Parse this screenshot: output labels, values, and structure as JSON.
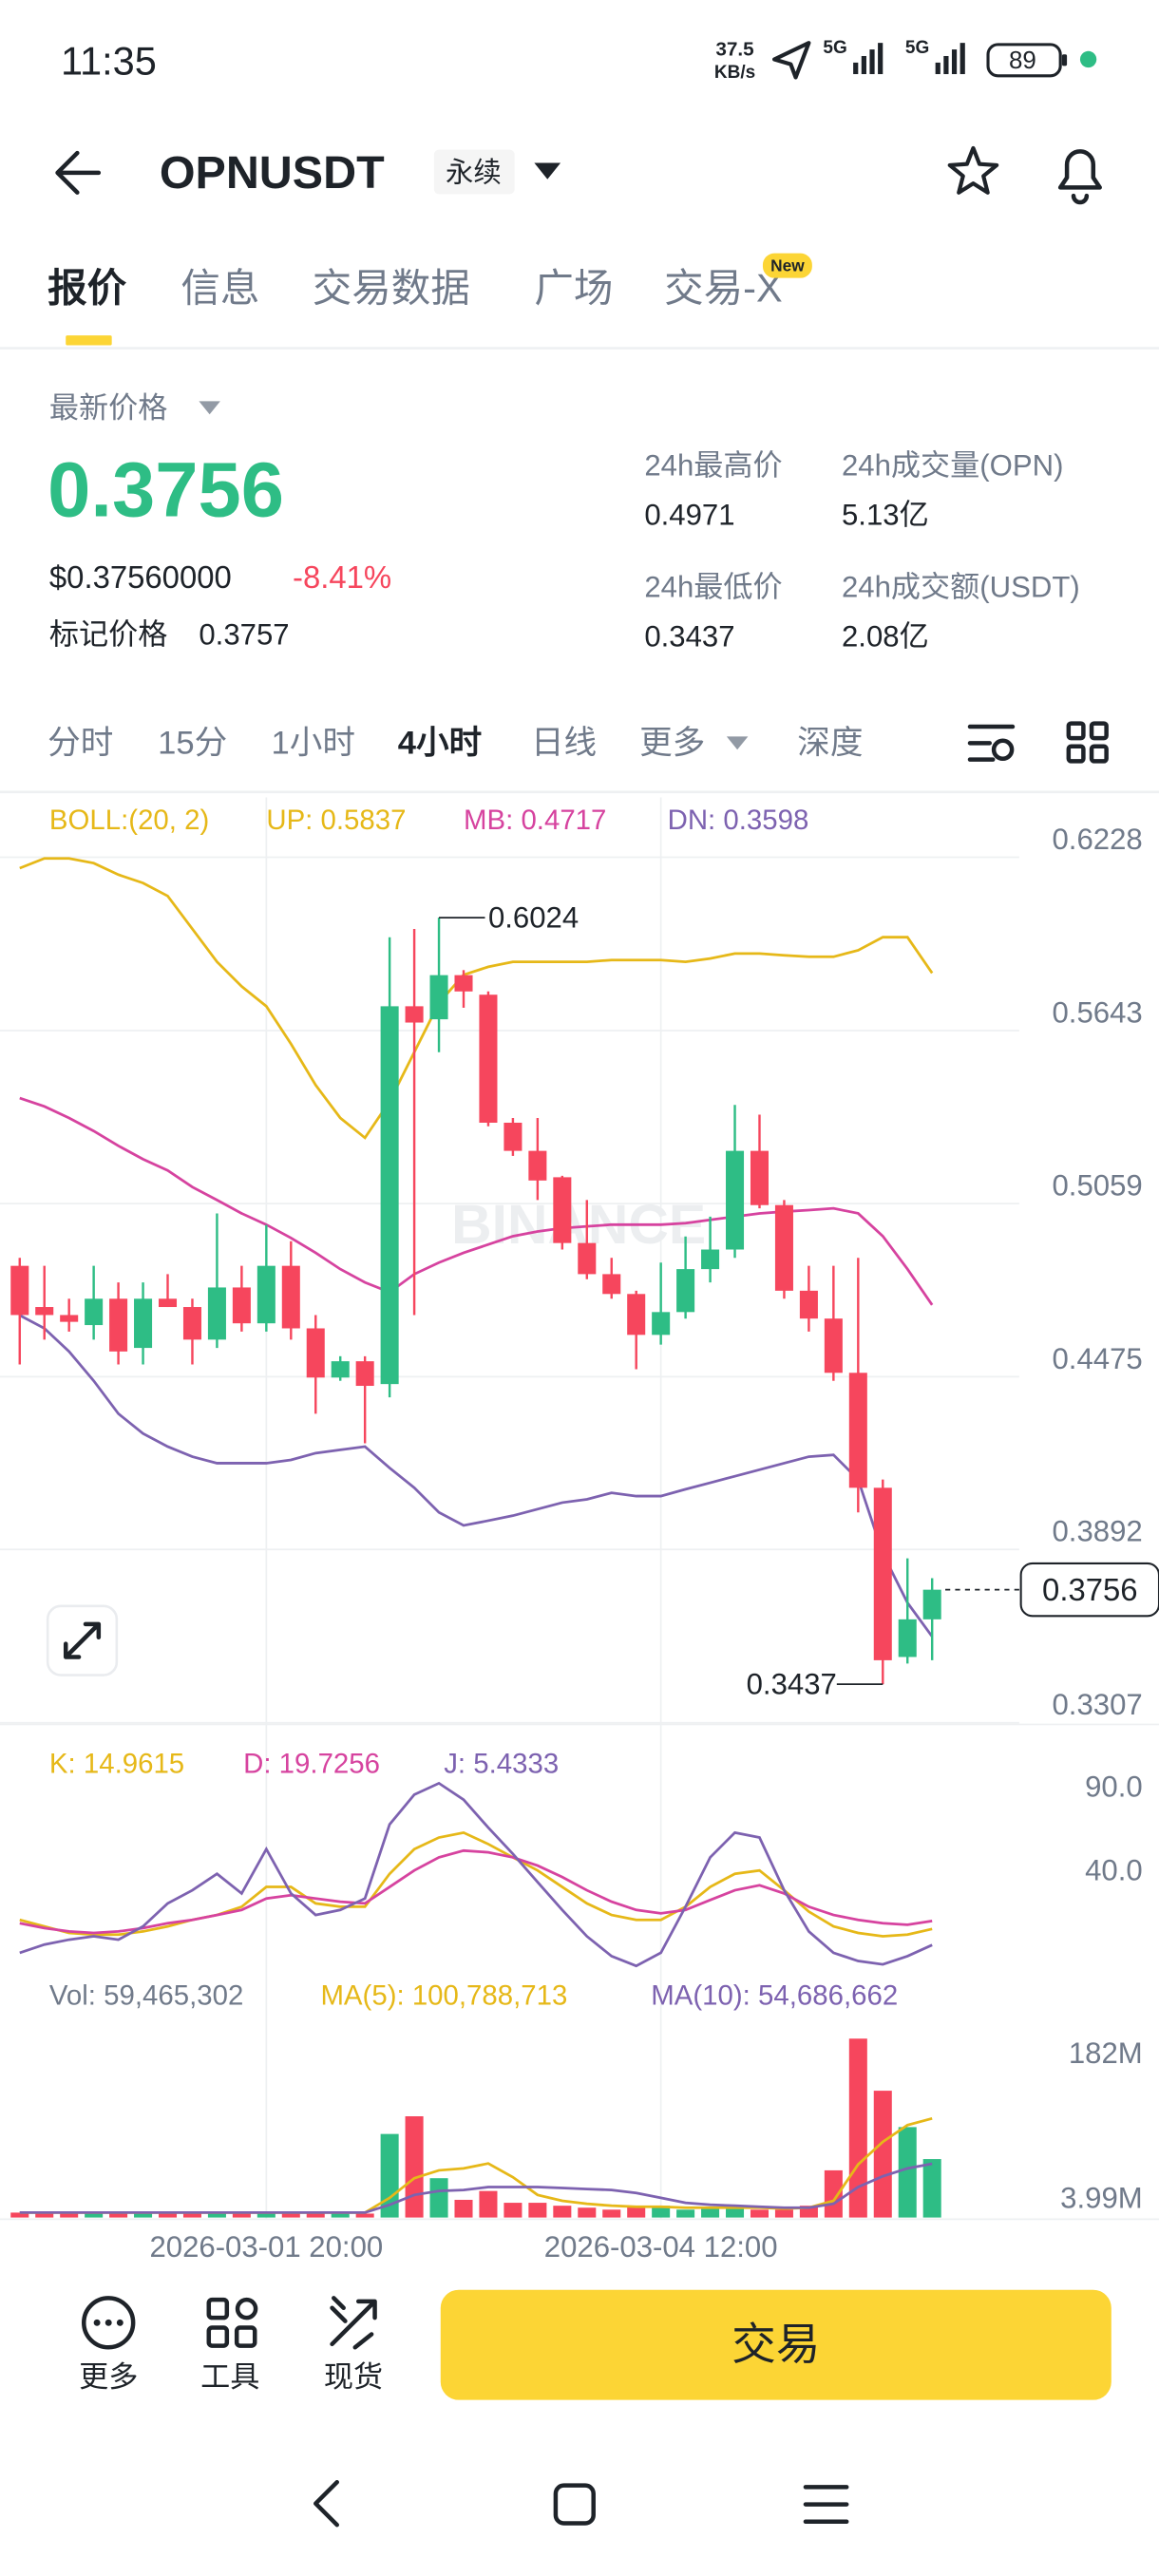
{
  "status_bar": {
    "time": "11:35",
    "speed_value": "37.5",
    "speed_unit": "KB/s",
    "network_1": "5G",
    "network_2": "5G",
    "battery": "89"
  },
  "header": {
    "symbol": "OPNUSDT",
    "contract_type": "永续"
  },
  "tabs": {
    "items": [
      "报价",
      "信息",
      "交易数据",
      "广场",
      "交易-X"
    ],
    "badge": "New"
  },
  "price": {
    "label": "最新价格",
    "last": "0.3756",
    "usd": "$0.37560000",
    "change": "-8.41%",
    "mark_label": "标记价格",
    "mark": "0.3757"
  },
  "stats": [
    {
      "label": "24h最高价",
      "value": "0.4971"
    },
    {
      "label": "24h成交量(OPN)",
      "value": "5.13亿"
    },
    {
      "label": "24h最低价",
      "value": "0.3437"
    },
    {
      "label": "24h成交额(USDT)",
      "value": "2.08亿"
    }
  ],
  "intervals": [
    "分时",
    "15分",
    "1小时",
    "4小时",
    "日线",
    "更多",
    "深度"
  ],
  "bottom_bar": {
    "actions": [
      "更多",
      "工具",
      "现货"
    ],
    "trade": "交易"
  },
  "chart_data": [
    {
      "type": "candlestick",
      "indicator": "BOLL:(20, 2)",
      "watermark": "BINANCE",
      "categories": [
        null,
        null,
        null,
        null,
        null,
        null,
        null,
        null,
        null,
        null,
        "2026-03-01 20:00",
        null,
        null,
        null,
        null,
        null,
        null,
        null,
        null,
        null,
        null,
        null,
        null,
        null,
        null,
        null,
        "2026-03-04 12:00",
        null,
        null,
        null,
        null,
        null,
        null,
        null,
        null,
        null,
        null,
        null
      ],
      "open": [
        0.4849,
        0.471,
        0.4683,
        0.4649,
        0.4738,
        0.4572,
        0.4738,
        0.471,
        0.46,
        0.4776,
        0.4655,
        0.4849,
        0.4638,
        0.4472,
        0.4527,
        0.445,
        0.5725,
        0.5681,
        0.583,
        0.5764,
        0.5332,
        0.5237,
        0.5148,
        0.4926,
        0.4821,
        0.4754,
        0.4616,
        0.4693,
        0.4838,
        0.4904,
        0.5237,
        0.5054,
        0.4765,
        0.4671,
        0.4488,
        0.41,
        0.3529,
        0.3656
      ],
      "high": [
        0.4876,
        0.4849,
        0.4738,
        0.4849,
        0.4793,
        0.4793,
        0.4821,
        0.4738,
        0.5026,
        0.4849,
        0.4987,
        0.4932,
        0.4683,
        0.4544,
        0.4544,
        0.5958,
        0.5986,
        0.6024,
        0.5847,
        0.5775,
        0.5348,
        0.5348,
        0.5153,
        0.5071,
        0.4876,
        0.4765,
        0.486,
        0.4948,
        0.5015,
        0.5392,
        0.5359,
        0.5071,
        0.4849,
        0.4849,
        0.4876,
        0.4128,
        0.3862,
        0.3795
      ],
      "low": [
        0.4516,
        0.46,
        0.4627,
        0.46,
        0.4516,
        0.4516,
        0.471,
        0.4516,
        0.4572,
        0.4627,
        0.4627,
        0.46,
        0.435,
        0.4461,
        0.425,
        0.4405,
        0.4683,
        0.557,
        0.572,
        0.532,
        0.522,
        0.5071,
        0.4904,
        0.4804,
        0.4738,
        0.45,
        0.4583,
        0.4671,
        0.4793,
        0.4876,
        0.5043,
        0.4738,
        0.4627,
        0.4461,
        0.4017,
        0.3437,
        0.3507,
        0.3518
      ],
      "close": [
        0.4683,
        0.4683,
        0.466,
        0.4738,
        0.456,
        0.4738,
        0.471,
        0.46,
        0.4776,
        0.4655,
        0.4849,
        0.4638,
        0.4472,
        0.4527,
        0.4444,
        0.5725,
        0.567,
        0.583,
        0.5775,
        0.5332,
        0.5237,
        0.5137,
        0.4926,
        0.4821,
        0.4754,
        0.4616,
        0.4693,
        0.4838,
        0.4904,
        0.5237,
        0.5054,
        0.4765,
        0.4671,
        0.4488,
        0.41,
        0.3518,
        0.3656,
        0.3756
      ],
      "up_color": "#2ebd85",
      "down_color": "#f6465d",
      "series": [
        {
          "name": "UP: 0.5837",
          "color": "#e6b818",
          "values": [
            0.6191,
            0.6224,
            0.6224,
            0.6208,
            0.6169,
            0.6141,
            0.6097,
            0.5986,
            0.5875,
            0.5792,
            0.5725,
            0.5598,
            0.5459,
            0.5348,
            0.5281,
            0.5404,
            0.557,
            0.5736,
            0.5831,
            0.5858,
            0.5875,
            0.5875,
            0.5875,
            0.5875,
            0.5881,
            0.5881,
            0.5881,
            0.5875,
            0.5886,
            0.5903,
            0.5903,
            0.5897,
            0.5892,
            0.5892,
            0.5914,
            0.5958,
            0.5958,
            0.5837
          ]
        },
        {
          "name": "MB: 0.4717",
          "color": "#d6439f",
          "values": [
            0.5415,
            0.5387,
            0.5348,
            0.5304,
            0.5254,
            0.5209,
            0.5171,
            0.5115,
            0.5071,
            0.5026,
            0.4988,
            0.4943,
            0.4893,
            0.4838,
            0.4793,
            0.476,
            0.4821,
            0.486,
            0.4893,
            0.4921,
            0.4949,
            0.4965,
            0.4976,
            0.4982,
            0.4988,
            0.4988,
            0.4988,
            0.4993,
            0.5004,
            0.5015,
            0.5026,
            0.5032,
            0.5037,
            0.5043,
            0.5026,
            0.4949,
            0.4838,
            0.4717
          ]
        },
        {
          "name": "DN: 0.3598",
          "color": "#7d62b0",
          "values": [
            0.4682,
            0.4638,
            0.456,
            0.4461,
            0.435,
            0.4283,
            0.4239,
            0.4205,
            0.4183,
            0.4183,
            0.4183,
            0.4194,
            0.4217,
            0.4228,
            0.4239,
            0.4167,
            0.41,
            0.4017,
            0.3973,
            0.3989,
            0.4006,
            0.4028,
            0.405,
            0.4061,
            0.4083,
            0.4072,
            0.4072,
            0.4095,
            0.4117,
            0.4139,
            0.4161,
            0.4183,
            0.4205,
            0.4211,
            0.4128,
            0.3878,
            0.3712,
            0.3598
          ]
        }
      ],
      "ylim": [
        0.3307,
        0.643
      ],
      "yticks": [
        0.6228,
        0.5643,
        0.5059,
        0.4475,
        0.3892,
        0.3307
      ],
      "grid": true
    },
    {
      "type": "line",
      "series": [
        {
          "name": "K: 14.9615",
          "color": "#e6b818",
          "values": [
            20.4,
            16.5,
            12.6,
            11.6,
            11.6,
            13.5,
            16.5,
            20.4,
            23.3,
            28.2,
            40.0,
            40.0,
            30.2,
            28.2,
            28.2,
            47.8,
            62.5,
            69.4,
            72.3,
            65.5,
            57.6,
            49.8,
            40.0,
            30.2,
            23.3,
            20.4,
            20.4,
            28.2,
            40.0,
            47.8,
            49.8,
            38.0,
            25.3,
            16.5,
            12.6,
            10.6,
            11.6,
            14.9615
          ]
        },
        {
          "name": "D: 19.7256",
          "color": "#d6439f",
          "values": [
            18.4,
            15.5,
            13.5,
            12.6,
            13.5,
            15.5,
            18.4,
            20.4,
            23.3,
            26.3,
            33.1,
            35.1,
            33.1,
            31.2,
            30.2,
            40.0,
            49.8,
            57.6,
            61.6,
            60.6,
            57.6,
            52.7,
            45.9,
            38.0,
            31.2,
            26.3,
            24.3,
            26.3,
            32.2,
            38.0,
            41.0,
            36.1,
            28.2,
            23.3,
            20.4,
            18.4,
            17.5,
            19.7256
          ]
        },
        {
          "name": "J: 5.4333",
          "color": "#7d62b0",
          "values": [
            0.8,
            5.7,
            8.6,
            10.6,
            8.6,
            16.5,
            30.2,
            38.0,
            47.8,
            36.1,
            62.5,
            36.1,
            23.3,
            26.3,
            33.1,
            77.2,
            94.9,
            101.7,
            91.9,
            75.3,
            59.6,
            42.9,
            26.3,
            10.6,
            -1.2,
            -7.0,
            0.8,
            28.2,
            57.6,
            72.3,
            69.4,
            38.0,
            13.5,
            0.8,
            -4.1,
            -6.1,
            -1.2,
            5.4333
          ]
        }
      ],
      "ylim": [
        -11,
        124
      ],
      "yticks": [
        {
          "value": 90,
          "label": "90.0"
        },
        {
          "value": 40,
          "label": "40.0"
        }
      ],
      "grid": false
    },
    {
      "type": "bar",
      "series": [
        {
          "name": "Vol: 59,465,302",
          "type": "bar",
          "values": [
            5000000,
            4000000,
            5000000,
            4000000,
            6000000,
            5000000,
            4000000,
            5000000,
            5000000,
            4000000,
            5000000,
            6000000,
            5000000,
            4000000,
            4000000,
            85000000,
            103000000,
            40000000,
            18000000,
            27000000,
            15000000,
            15000000,
            12000000,
            10000000,
            8000000,
            12000000,
            12000000,
            8000000,
            10000000,
            10000000,
            8000000,
            8000000,
            12000000,
            48000000,
            182000000,
            129000000,
            92000000,
            59465302
          ]
        },
        {
          "name": "MA(5): 100,788,713",
          "type": "line",
          "color": "#e6b818",
          "values": [
            5000000,
            5000000,
            5000000,
            5000000,
            5000000,
            5000000,
            5000000,
            5000000,
            5000000,
            5000000,
            5000000,
            5000000,
            5000000,
            5000000,
            5000000,
            20000000,
            40000000,
            48000000,
            50000000,
            55000000,
            41000000,
            23000000,
            17000000,
            14000000,
            12000000,
            11000000,
            11000000,
            10000000,
            10000000,
            10000000,
            10000000,
            9000000,
            10000000,
            17000000,
            54000000,
            77000000,
            94000000,
            100788713
          ]
        },
        {
          "name": "MA(10): 54,686,662",
          "type": "line",
          "color": "#7d62b0",
          "values": [
            5000000,
            5000000,
            5000000,
            5000000,
            5000000,
            5000000,
            5000000,
            5000000,
            5000000,
            5000000,
            5000000,
            5000000,
            5000000,
            5000000,
            5000000,
            13000000,
            23000000,
            27000000,
            28000000,
            31000000,
            31000000,
            31000000,
            30000000,
            29000000,
            28000000,
            25000000,
            20000000,
            15000000,
            13000000,
            12000000,
            11000000,
            10000000,
            10000000,
            14000000,
            31000000,
            42000000,
            50000000,
            54686662
          ]
        }
      ],
      "ylim": [
        0,
        199000000
      ],
      "yticks": [
        {
          "value": 182000000,
          "label": "182M"
        },
        {
          "value": 3990000,
          "label": "3.99M"
        }
      ],
      "grid": false
    }
  ]
}
